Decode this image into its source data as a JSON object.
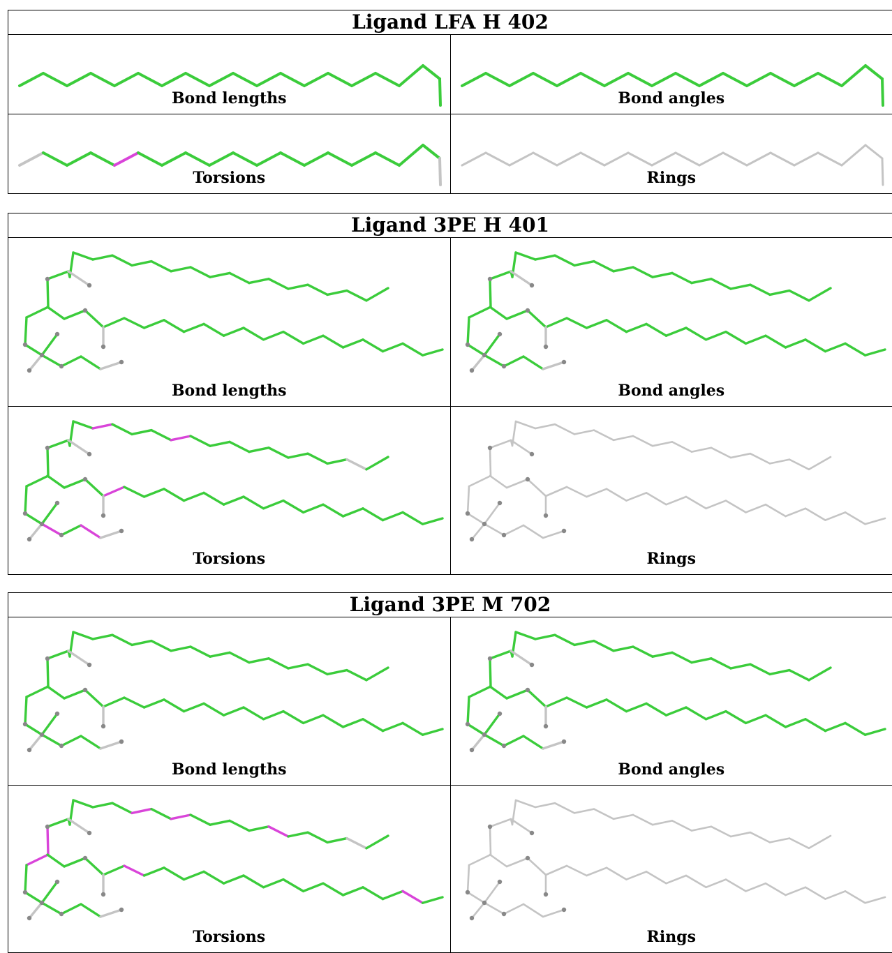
{
  "colors": {
    "ok": "#3bcc3b",
    "outlier": "#d944d9",
    "neutral": "#c4c4c4",
    "atom": "#888888"
  },
  "ligands": [
    {
      "title": "Ligand LFA H 402",
      "structure": "chain",
      "panels": [
        {
          "caption": "Bond lengths",
          "coloring": "all-green"
        },
        {
          "caption": "Bond angles",
          "coloring": "all-green"
        },
        {
          "caption": "Torsions",
          "coloring": "torsions",
          "outlier_bonds": [
            4
          ]
        },
        {
          "caption": "Rings",
          "coloring": "all-grey"
        }
      ]
    },
    {
      "title": "Ligand 3PE H 401",
      "structure": "branched",
      "panels": [
        {
          "caption": "Bond lengths",
          "coloring": "all-green"
        },
        {
          "caption": "Bond angles",
          "coloring": "all-green"
        },
        {
          "caption": "Torsions",
          "coloring": "torsions",
          "outlier_bonds": [
            "A3",
            "A7",
            "B1",
            "B18",
            "B20",
            "C1",
            "C3"
          ]
        },
        {
          "caption": "Rings",
          "coloring": "all-grey"
        }
      ]
    },
    {
      "title": "Ligand 3PE M 702",
      "structure": "branched",
      "panels": [
        {
          "caption": "Bond lengths",
          "coloring": "all-green"
        },
        {
          "caption": "Bond angles",
          "coloring": "all-green"
        },
        {
          "caption": "Torsions",
          "coloring": "torsions",
          "outlier_bonds": [
            "A5",
            "A7",
            "A12",
            "B2",
            "B16",
            "D1",
            "D2"
          ]
        },
        {
          "caption": "Rings",
          "coloring": "all-grey"
        }
      ]
    }
  ]
}
